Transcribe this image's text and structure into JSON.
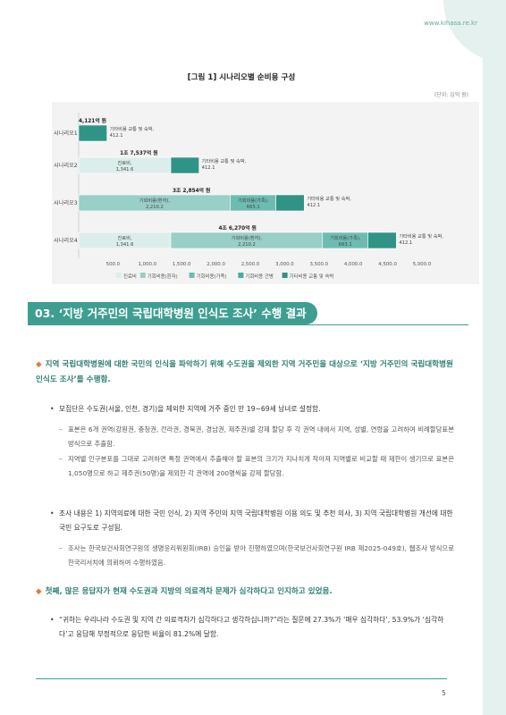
{
  "header": {
    "url": "www.kihasa.re.kr"
  },
  "figure": {
    "title": "[그림 1] 시나리오별 순비용 구성",
    "unit": "(단위: 십억 원)"
  },
  "chart_data": {
    "type": "bar",
    "orientation": "horizontal",
    "stacked": true,
    "categories": [
      "시나리오1",
      "시나리오2",
      "시나리오3",
      "시나리오4"
    ],
    "totals": [
      "4,121억 원",
      "1조 7,537억 원",
      "3조 2,854억 원",
      "4조 6,270억 원"
    ],
    "series": [
      {
        "name": "진료비",
        "color": "#dbeeeb",
        "values": [
          0,
          1341.6,
          0,
          1341.6
        ],
        "labels": [
          "",
          "진료비,\n1,341.6",
          "",
          "진료비,\n1,341.6"
        ]
      },
      {
        "name": "기회비용(환자)",
        "color": "#98cfc7",
        "values": [
          0,
          0,
          2210.2,
          2210.2
        ],
        "labels": [
          "",
          "",
          "기회비용(환자),\n2,210.2",
          "기회비용(환자),\n2,210.2"
        ]
      },
      {
        "name": "기회비용(가족)",
        "color": "#6dbcb1",
        "values": [
          0,
          0,
          663.1,
          663.1
        ],
        "labels": [
          "",
          "",
          "기회비용(가족),\n663.1",
          "기회비용(가족),\n663.1"
        ]
      },
      {
        "name": "기회비용 간병",
        "color": "#48ab9e",
        "values": [
          0,
          0,
          0,
          0
        ],
        "labels": [
          "",
          "",
          "",
          ""
        ]
      },
      {
        "name": "기타비용 교통 및 숙박",
        "color": "#2f9486",
        "values": [
          412.1,
          412.1,
          412.1,
          412.1
        ],
        "labels": [
          "기타비용 교통 및 숙박,\n412.1",
          "기타비용 교통 및 숙박,\n412.1",
          "기타비용 교통 및 숙박,\n412.1",
          "기타비용 교통 및 숙박,\n412.1"
        ]
      }
    ],
    "xlim": [
      0,
      5000
    ],
    "xticks": [
      "500.0",
      "1,000.0",
      "1,500.0",
      "2,000.0",
      "2,500.0",
      "3,000.0",
      "3,500.0",
      "4,000.0",
      "4,500.0",
      "5,000.0"
    ],
    "legend": "bottom"
  },
  "section": {
    "title": "03. ‘지방 거주민의 국립대학병원 인식도 조사’ 수행 결과"
  },
  "para1": {
    "lead": "지역 국립대학병원에 대한 국민의 인식을 파악하기 위해 수도권을 제외한 지역 거주민을 대상으로 ‘지방 거주민의 국립대학병원 인식도 조사’를 수행함.",
    "bullet1": "모집단은 수도권(서울, 인천, 경기)을 제외한 지역에 거주 중인 만 19~69세 남녀로 설정함.",
    "sub1": "표본은 6개 권역(강원권, 충청권, 전라권, 경북권, 경남권, 제주권)별 강제 할당 후 각 권역 내에서 지역, 성별, 연령을 고려하여 비례할당표본 방식으로 추출함.",
    "sub2": "지역별 인구분포를 그대로 고려하면 특정 권역에서 추출해야 할 표본의 크기가 지나치게 작아져 지역별로 비교할 때 제한이 생기므로 표본은 1,050명으로 하고 제주권(50명)을 제외한 각 권역에 200명씩을 강제 할당함.",
    "bullet2": "조사 내용은 1) 지역의료에 대한 국민 인식, 2) 지역 주민의 지역 국립대학병원 이용 의도 및 추천 의사, 3) 지역 국립대학병원 개선에 대한 국민 요구도로 구성됨.",
    "sub3": "조사는 한국보건사회연구원의 생명윤리위원회(IRB) 승인을 받아 진행하였으며(한국보건사회연구원 IRB 제2025-049호), 웹조사 방식으로 한국리서치에 의뢰하여 수행하였음."
  },
  "para2": {
    "lead": "첫째, 많은 응답자가 현재 수도권과 지방의 의료격차 문제가 심각하다고 인지하고 있었음.",
    "bullet1": "“귀하는 우리나라 수도권 및 지역 간 의료격차가 심각하다고 생각하십니까?”라는 질문에 27.3%가 ‘매우 심각하다’, 53.9%가 ‘심각하다’고 응답해 부정적으로 응답한 비율이 81.2%에 달함."
  },
  "footer": {
    "page": "5"
  }
}
